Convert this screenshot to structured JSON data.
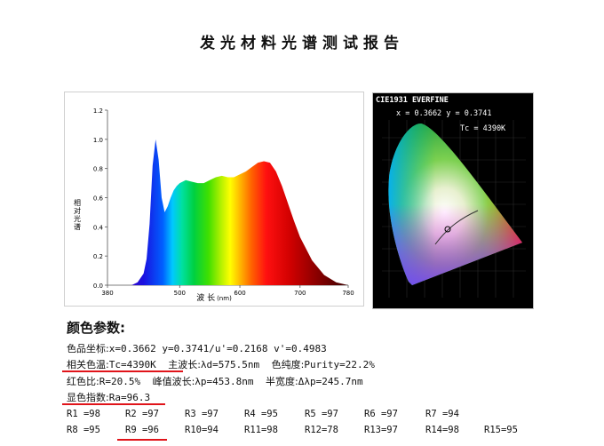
{
  "report": {
    "title": "发光材料光谱测试报告"
  },
  "spectrum": {
    "ylabel": "相对光谱",
    "xlabel": "波 长",
    "xunit": "(nm)",
    "yticks": [
      "0.0",
      "0.2",
      "0.4",
      "0.6",
      "0.8",
      "1.0",
      "1.2"
    ],
    "xticks": [
      "380",
      "500",
      "600",
      "700",
      "780"
    ]
  },
  "chart_data": {
    "type": "area",
    "xlabel": "波 长 (nm)",
    "ylabel": "相对光谱",
    "xlim": [
      380,
      780
    ],
    "ylim": [
      0,
      1.2
    ],
    "x": [
      420,
      430,
      440,
      445,
      450,
      455,
      460,
      465,
      470,
      475,
      480,
      485,
      490,
      495,
      500,
      510,
      520,
      530,
      540,
      550,
      560,
      570,
      580,
      590,
      600,
      610,
      620,
      630,
      640,
      650,
      660,
      670,
      680,
      690,
      700,
      720,
      740,
      760,
      780
    ],
    "y": [
      0.0,
      0.02,
      0.08,
      0.18,
      0.42,
      0.82,
      1.0,
      0.86,
      0.6,
      0.5,
      0.54,
      0.6,
      0.65,
      0.68,
      0.7,
      0.72,
      0.71,
      0.7,
      0.7,
      0.72,
      0.74,
      0.75,
      0.74,
      0.74,
      0.76,
      0.78,
      0.81,
      0.84,
      0.85,
      0.84,
      0.78,
      0.68,
      0.56,
      0.44,
      0.33,
      0.17,
      0.07,
      0.02,
      0.0
    ]
  },
  "cie": {
    "title": "CIE1931 EVERFINE",
    "xy_text": "x = 0.3662 y = 0.3741",
    "tc_text": "Tc = 4390K"
  },
  "params": {
    "heading": "颜色参数:",
    "line1": {
      "label": "色品坐标:",
      "value": "x=0.3662 y=0.3741/u'=0.2168 v'=0.4983"
    },
    "line2": {
      "label": "相关色温:",
      "value": "Tc=4390K",
      "label2": "主波长:",
      "value2": "λd=575.5nm",
      "label3": "色纯度:",
      "value3": "Purity=22.2%"
    },
    "line3": {
      "label": "红色比:",
      "value": "R=20.5%",
      "label2": "峰值波长:",
      "value2": "λp=453.8nm",
      "label3": "半宽度:",
      "value3": "Δλp=245.7nm"
    },
    "line4": {
      "label": "显色指数:",
      "value": "Ra=96.3"
    },
    "ri_row1": [
      "R1 =98",
      "R2 =97",
      "R3 =97",
      "R4 =95",
      "R5 =97",
      "R6 =97",
      "R7 =94"
    ],
    "ri_row2": [
      "R8 =95",
      "R9 =96",
      "R10=94",
      "R11=98",
      "R12=78",
      "R13=97",
      "R14=98",
      "R15=95"
    ],
    "highlight_color": "#e0141a"
  }
}
